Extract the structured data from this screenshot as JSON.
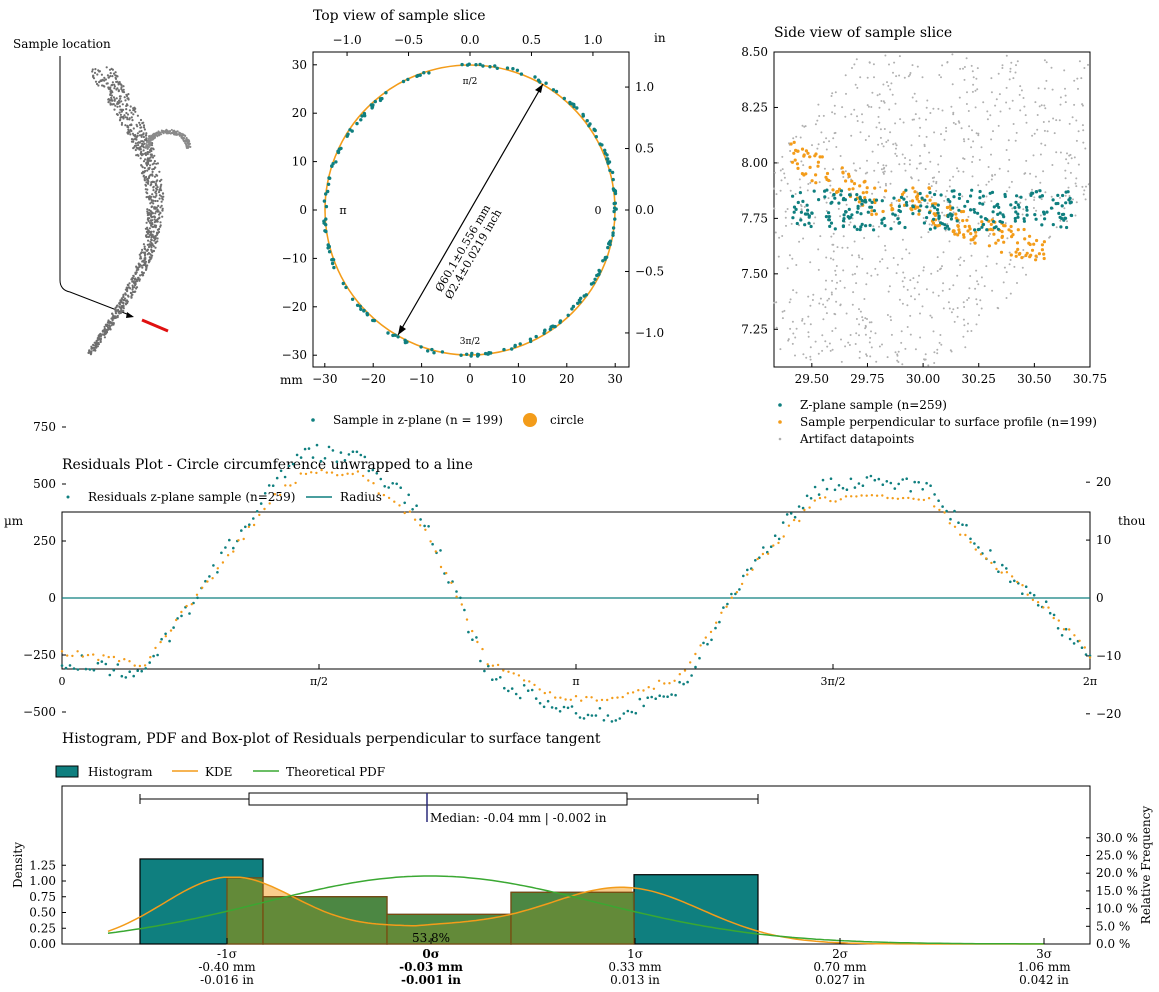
{
  "colors": {
    "teal": "#0f7f7f",
    "orange": "#f39c1a",
    "green": "#3aa832",
    "grey": "#b0b0b0",
    "red": "#e01010",
    "navy": "#2a2a7a"
  },
  "location": {
    "title": "Sample location"
  },
  "top_view": {
    "title": "Top view of sample slice",
    "left_unit": "mm",
    "top_unit": "in",
    "angle_labels": [
      "π/2",
      "π",
      "0",
      "3π/2"
    ],
    "dim_mm": "Ø60.1±0.556 mm",
    "dim_in": "Ø2.4±0.0219 inch",
    "legend": [
      "Sample in z-plane (n = 199)",
      "circle"
    ],
    "x_ticks": [
      "−30",
      "−20",
      "−10",
      "0",
      "10",
      "20",
      "30"
    ],
    "y_ticks": [
      "−30",
      "−20",
      "−10",
      "0",
      "10",
      "20",
      "30"
    ],
    "top_ticks": [
      "−1.0",
      "−0.5",
      "0.0",
      "0.5",
      "1.0"
    ],
    "right_ticks": [
      "−1.0",
      "−0.5",
      "0.0",
      "0.5",
      "1.0"
    ]
  },
  "side_view": {
    "title": "Side view of sample slice",
    "x_ticks": [
      "29.50",
      "29.75",
      "30.00",
      "30.25",
      "30.50",
      "30.75"
    ],
    "y_ticks": [
      "7.25",
      "7.50",
      "7.75",
      "8.00",
      "8.25",
      "8.50"
    ],
    "legend": [
      "Z-plane sample (n=259)",
      "Sample perpendicular to surface profile (n=199)",
      "Artifact datapoints"
    ]
  },
  "residuals": {
    "title": "Residuals Plot - Circle circumference unwrapped to a line",
    "legend": [
      "Residuals z-plane sample (n=259)",
      "Radius"
    ],
    "left_unit": "µm",
    "right_unit": "thou",
    "y_ticks": [
      "750",
      "500",
      "250",
      "0",
      "−250",
      "−500"
    ],
    "right_ticks": [
      "20",
      "10",
      "0",
      "−10",
      "−20"
    ],
    "x_ticks": [
      "0",
      "π/2",
      "π",
      "3π/2",
      "2π"
    ]
  },
  "histogram": {
    "title": "Histogram, PDF and Box-plot of Residuals perpendicular to surface tangent",
    "legend": [
      "Histogram",
      "KDE",
      "Theoretical PDF"
    ],
    "ylabel": "Density",
    "ylabel_right": "Relative Frequency",
    "y_ticks": [
      "0.00",
      "0.25",
      "0.50",
      "0.75",
      "1.00",
      "1.25"
    ],
    "right_ticks": [
      "0.0 %",
      "5.0 %",
      "10.0 %",
      "15.0 %",
      "20.0 %",
      "25.0 %",
      "30.0 %"
    ],
    "median": "Median: -0.04 mm | -0.002 in",
    "pct": "53.8%",
    "sigma": [
      {
        "s": "-1σ",
        "mm": "-0.40 mm",
        "in": "-0.016 in"
      },
      {
        "s": "0σ",
        "mm": "-0.03 mm",
        "in": "-0.001 in"
      },
      {
        "s": "1σ",
        "mm": "0.33 mm",
        "in": "0.013 in"
      },
      {
        "s": "2σ",
        "mm": "0.70 mm",
        "in": "0.027 in"
      },
      {
        "s": "3σ",
        "mm": "1.06 mm",
        "in": "0.042 in"
      }
    ]
  },
  "chart_data": [
    {
      "type": "scatter",
      "title": "Top view of sample slice",
      "xlim": [
        -32,
        30
      ],
      "ylim": [
        -32,
        32
      ],
      "circle_diameter_mm": 60.1,
      "n": 199
    },
    {
      "type": "scatter",
      "title": "Side view of sample slice",
      "xlim": [
        29.33,
        30.75
      ],
      "ylim": [
        7.08,
        8.5
      ]
    },
    {
      "type": "scatter",
      "title": "Residuals Plot - Circle circumference unwrapped to a line",
      "ylim": [
        -620,
        750
      ],
      "x": [
        0,
        0.5,
        1.0,
        1.3,
        1.5,
        1.8,
        2.2,
        2.6,
        3.0,
        3.4,
        3.8,
        4.2,
        4.6,
        4.9,
        5.3,
        5.6,
        6.0,
        6.28
      ],
      "series": [
        {
          "name": "Residuals z-plane sample (n=259)",
          "values": [
            -270,
            -330,
            200,
            500,
            640,
            620,
            370,
            -320,
            -490,
            -510,
            -380,
            140,
            480,
            510,
            490,
            230,
            -40,
            -280
          ]
        }
      ]
    },
    {
      "type": "bar",
      "title": "Histogram, PDF and Box-plot of Residuals perpendicular to surface tangent",
      "categories": [
        "-0.50",
        "-0.35",
        "-0.20",
        "-0.04",
        "0.11",
        "0.26"
      ],
      "values": [
        1.35,
        0.75,
        0.47,
        0.82,
        1.1,
        0.0
      ],
      "ylim": [
        0,
        1.5
      ]
    }
  ]
}
